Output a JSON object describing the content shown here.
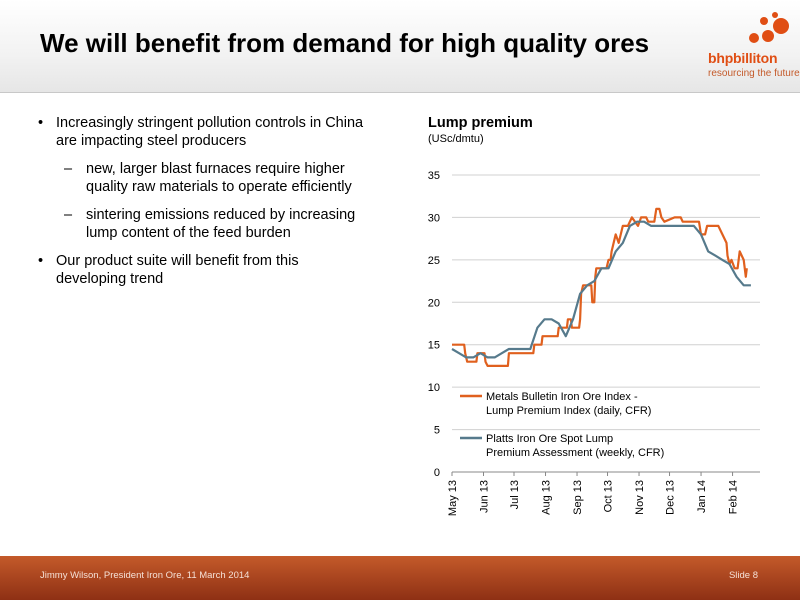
{
  "slide": {
    "title": "We will benefit from demand for high quality ores",
    "logo": {
      "name": "bhpbilliton",
      "tagline": "resourcing the future",
      "color": "#e04e14"
    },
    "bullets": [
      {
        "text": "Increasingly stringent pollution controls in China are impacting steel producers",
        "sub": [
          "new, larger blast furnaces require higher quality raw materials to operate efficiently",
          "sintering emissions reduced by increasing lump content of the feed burden"
        ]
      },
      {
        "text": "Our product suite will benefit from this developing trend",
        "sub": []
      }
    ],
    "footer": {
      "left": "Jimmy Wilson, President Iron Ore, 11 March 2014",
      "right": "Slide 8"
    }
  },
  "chart_data": {
    "type": "line",
    "title": "Lump premium",
    "ylabel": "(USc/dmtu)",
    "ylim": [
      0,
      35
    ],
    "yticks": [
      0,
      5,
      10,
      15,
      20,
      25,
      30,
      35
    ],
    "x_range": [
      "2013-05-01",
      "2014-02-28"
    ],
    "xticks": [
      {
        "date": "2013-05-01",
        "label": "May 13"
      },
      {
        "date": "2013-06-01",
        "label": "Jun 13"
      },
      {
        "date": "2013-07-01",
        "label": "Jul 13"
      },
      {
        "date": "2013-08-01",
        "label": "Aug 13"
      },
      {
        "date": "2013-09-01",
        "label": "Sep 13"
      },
      {
        "date": "2013-10-01",
        "label": "Oct 13"
      },
      {
        "date": "2013-11-01",
        "label": "Nov 13"
      },
      {
        "date": "2013-12-01",
        "label": "Dec 13"
      },
      {
        "date": "2014-01-01",
        "label": "Jan 14"
      },
      {
        "date": "2014-02-01",
        "label": "Feb 14"
      }
    ],
    "grid": "horizontal",
    "legend": "lower-center",
    "series": [
      {
        "name": "Metals Bulletin Iron Ore Index - Lump Premium Index (daily, CFR)",
        "color": "#e0601e",
        "points": [
          [
            "2013-05-01",
            15
          ],
          [
            "2013-05-13",
            15
          ],
          [
            "2013-05-14",
            14
          ],
          [
            "2013-05-16",
            13
          ],
          [
            "2013-05-25",
            13
          ],
          [
            "2013-05-26",
            14
          ],
          [
            "2013-06-02",
            14
          ],
          [
            "2013-06-03",
            13
          ],
          [
            "2013-06-05",
            12.5
          ],
          [
            "2013-06-25",
            12.5
          ],
          [
            "2013-06-26",
            14
          ],
          [
            "2013-07-20",
            14
          ],
          [
            "2013-07-21",
            15
          ],
          [
            "2013-07-28",
            15
          ],
          [
            "2013-07-29",
            16
          ],
          [
            "2013-08-13",
            16
          ],
          [
            "2013-08-14",
            17
          ],
          [
            "2013-08-22",
            17
          ],
          [
            "2013-08-23",
            18
          ],
          [
            "2013-08-26",
            18
          ],
          [
            "2013-08-27",
            17
          ],
          [
            "2013-09-03",
            17
          ],
          [
            "2013-09-04",
            18
          ],
          [
            "2013-09-05",
            21
          ],
          [
            "2013-09-07",
            22
          ],
          [
            "2013-09-15",
            22
          ],
          [
            "2013-09-16",
            20
          ],
          [
            "2013-09-18",
            20
          ],
          [
            "2013-09-19",
            23
          ],
          [
            "2013-09-20",
            24
          ],
          [
            "2013-09-30",
            24
          ],
          [
            "2013-10-02",
            25
          ],
          [
            "2013-10-04",
            25
          ],
          [
            "2013-10-05",
            26
          ],
          [
            "2013-10-09",
            28
          ],
          [
            "2013-10-12",
            27
          ],
          [
            "2013-10-16",
            29
          ],
          [
            "2013-10-21",
            29
          ],
          [
            "2013-10-25",
            30
          ],
          [
            "2013-10-31",
            29
          ],
          [
            "2013-11-03",
            30
          ],
          [
            "2013-11-08",
            30
          ],
          [
            "2013-11-10",
            29.5
          ],
          [
            "2013-11-16",
            29.5
          ],
          [
            "2013-11-18",
            31
          ],
          [
            "2013-11-21",
            31
          ],
          [
            "2013-11-23",
            30
          ],
          [
            "2013-11-26",
            29.5
          ],
          [
            "2013-12-06",
            30
          ],
          [
            "2013-12-12",
            30
          ],
          [
            "2013-12-14",
            29.5
          ],
          [
            "2013-12-30",
            29.5
          ],
          [
            "2014-01-01",
            28
          ],
          [
            "2014-01-05",
            28
          ],
          [
            "2014-01-07",
            29
          ],
          [
            "2014-01-18",
            29
          ],
          [
            "2014-01-22",
            28
          ],
          [
            "2014-01-26",
            27
          ],
          [
            "2014-01-27",
            25.5
          ],
          [
            "2014-01-29",
            24.5
          ],
          [
            "2014-01-31",
            25
          ],
          [
            "2014-02-03",
            24
          ],
          [
            "2014-02-06",
            24
          ],
          [
            "2014-02-08",
            26
          ],
          [
            "2014-02-12",
            25
          ],
          [
            "2014-02-14",
            23
          ],
          [
            "2014-02-15",
            24
          ]
        ]
      },
      {
        "name": "Platts Iron Ore Spot Lump Premium Assessment (weekly, CFR)",
        "color": "#567a8c",
        "points": [
          [
            "2013-05-01",
            14.5
          ],
          [
            "2013-05-08",
            14
          ],
          [
            "2013-05-15",
            13.5
          ],
          [
            "2013-05-22",
            13.5
          ],
          [
            "2013-05-29",
            14
          ],
          [
            "2013-06-05",
            13.5
          ],
          [
            "2013-06-12",
            13.5
          ],
          [
            "2013-06-19",
            14
          ],
          [
            "2013-06-26",
            14.5
          ],
          [
            "2013-07-03",
            14.5
          ],
          [
            "2013-07-10",
            14.5
          ],
          [
            "2013-07-17",
            14.5
          ],
          [
            "2013-07-24",
            17
          ],
          [
            "2013-07-31",
            18
          ],
          [
            "2013-08-07",
            18
          ],
          [
            "2013-08-14",
            17.5
          ],
          [
            "2013-08-21",
            16
          ],
          [
            "2013-08-28",
            18
          ],
          [
            "2013-09-04",
            21
          ],
          [
            "2013-09-11",
            22
          ],
          [
            "2013-09-18",
            22.5
          ],
          [
            "2013-09-25",
            24
          ],
          [
            "2013-10-02",
            24
          ],
          [
            "2013-10-09",
            26
          ],
          [
            "2013-10-16",
            27
          ],
          [
            "2013-10-23",
            29
          ],
          [
            "2013-10-30",
            29.5
          ],
          [
            "2013-11-06",
            29.5
          ],
          [
            "2013-11-13",
            29
          ],
          [
            "2013-11-20",
            29
          ],
          [
            "2013-11-27",
            29
          ],
          [
            "2013-12-04",
            29
          ],
          [
            "2013-12-11",
            29
          ],
          [
            "2013-12-18",
            29
          ],
          [
            "2013-12-25",
            29
          ],
          [
            "2014-01-01",
            28
          ],
          [
            "2014-01-08",
            26
          ],
          [
            "2014-01-15",
            25.5
          ],
          [
            "2014-01-22",
            25
          ],
          [
            "2014-01-29",
            24.5
          ],
          [
            "2014-02-05",
            23
          ],
          [
            "2014-02-12",
            22
          ],
          [
            "2014-02-19",
            22
          ]
        ]
      }
    ]
  }
}
